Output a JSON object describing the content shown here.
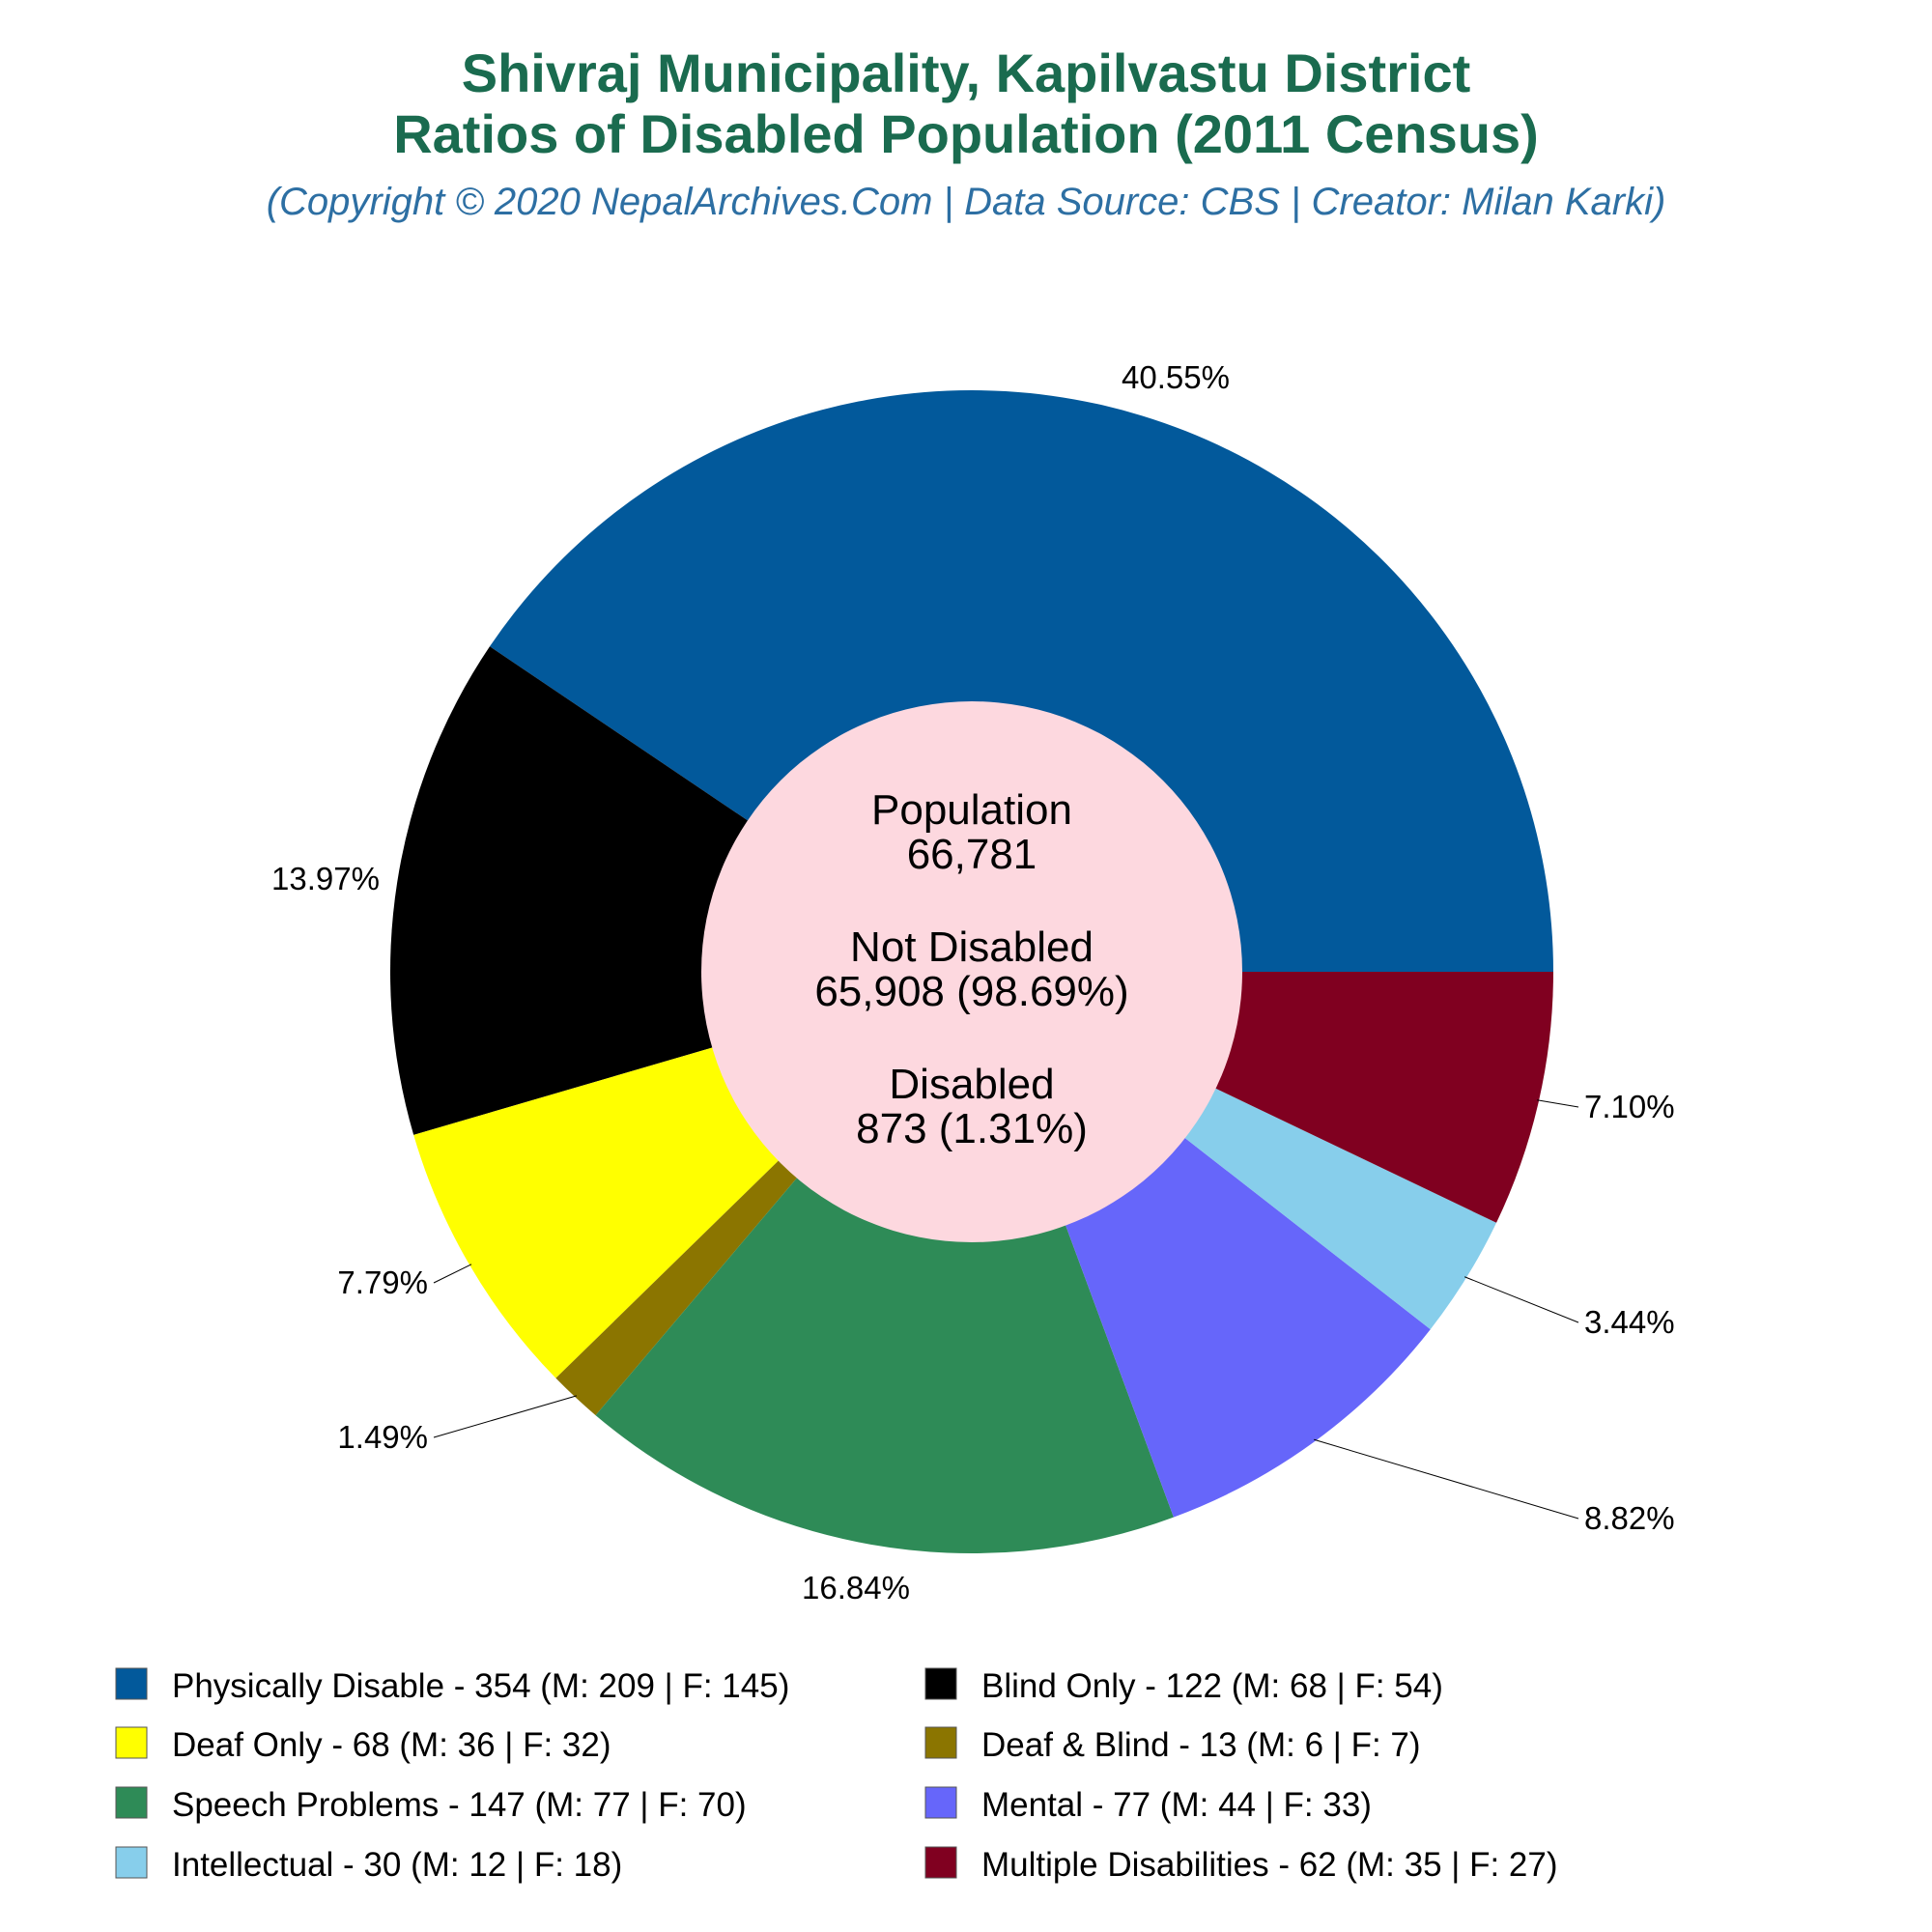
{
  "chart_data": {
    "type": "pie",
    "title_line1": "Shivraj Municipality, Kapilvastu District",
    "title_line2": "Ratios of Disabled Population (2011 Census)",
    "subtitle": "(Copyright © 2020 NepalArchives.Com | Data Source: CBS | Creator: Milan Karki)",
    "center": {
      "population_label": "Population",
      "population_value": "66,781",
      "not_disabled_label": "Not Disabled",
      "not_disabled_value": "65,908 (98.69%)",
      "disabled_label": "Disabled",
      "disabled_value": "873 (1.31%)",
      "color": "#fdd8df"
    },
    "slices": [
      {
        "name": "Physically Disable",
        "value": 354,
        "pct_label": "40.55%",
        "legend": "Physically Disable - 354 (M: 209 | F: 145)",
        "color": "#02599b"
      },
      {
        "name": "Blind Only",
        "value": 122,
        "pct_label": "13.97%",
        "legend": "Blind Only - 122 (M: 68 | F: 54)",
        "color": "#000000"
      },
      {
        "name": "Deaf Only",
        "value": 68,
        "pct_label": "7.79%",
        "legend": "Deaf Only - 68 (M: 36 | F: 32)",
        "color": "#ffff00"
      },
      {
        "name": "Deaf & Blind",
        "value": 13,
        "pct_label": "1.49%",
        "legend": "Deaf & Blind - 13 (M: 6 | F: 7)",
        "color": "#8b7500"
      },
      {
        "name": "Speech Problems",
        "value": 147,
        "pct_label": "16.84%",
        "legend": "Speech Problems - 147 (M: 77 | F: 70)",
        "color": "#2e8b57"
      },
      {
        "name": "Mental",
        "value": 77,
        "pct_label": "8.82%",
        "legend": "Mental - 77 (M: 44 | F: 33)",
        "color": "#6666fa"
      },
      {
        "name": "Intellectual",
        "value": 30,
        "pct_label": "3.44%",
        "legend": "Intellectual - 30 (M: 12 | F: 18)",
        "color": "#87ceeb"
      },
      {
        "name": "Multiple Disabilities",
        "value": 62,
        "pct_label": "7.10%",
        "legend": "Multiple Disabilities - 62 (M: 35 | F: 27)",
        "color": "#800020"
      }
    ]
  }
}
